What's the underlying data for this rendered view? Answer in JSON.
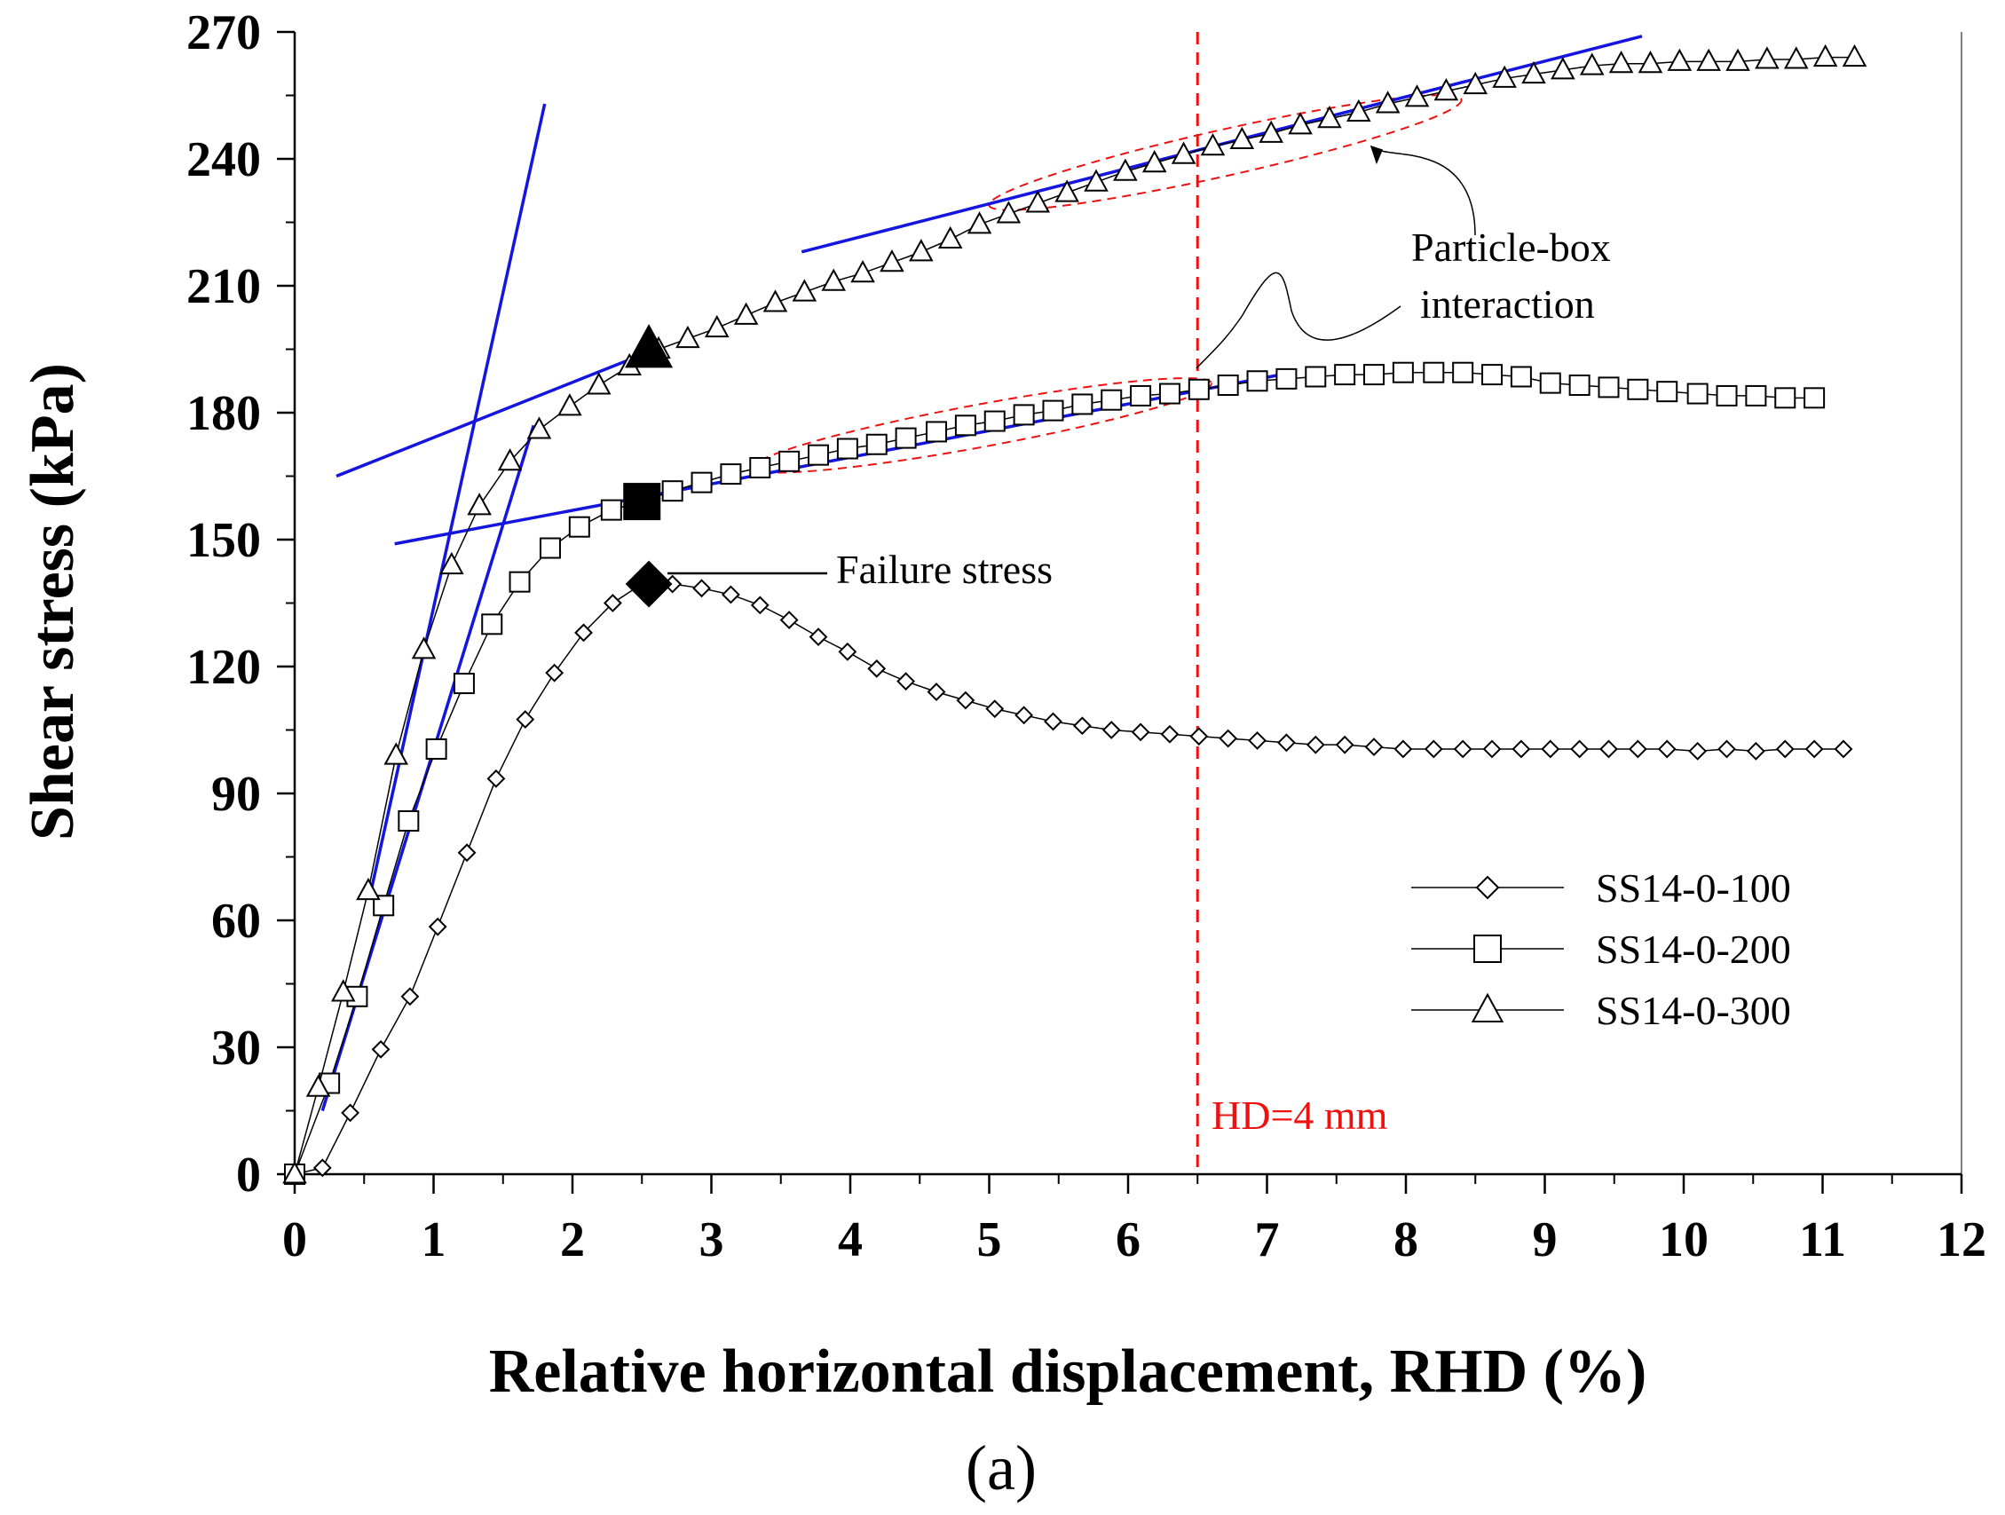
{
  "chart_data": {
    "type": "scatter",
    "xlabel": "Relative horizontal displacement, RHD (%)",
    "ylabel": "Shear stress (kPa)",
    "panel_label": "(a)",
    "xlim": [
      0,
      12
    ],
    "ylim": [
      0,
      270
    ],
    "xticks": [
      0,
      1,
      2,
      3,
      4,
      5,
      6,
      7,
      8,
      9,
      10,
      11,
      12
    ],
    "yticks": [
      0,
      30,
      60,
      90,
      120,
      150,
      180,
      210,
      240,
      270
    ],
    "grid": false,
    "legend_position": "lower-right",
    "series": [
      {
        "name": "SS14-0-100",
        "marker": "diamond",
        "x": [
          0,
          0.2,
          0.4,
          0.62,
          0.83,
          1.03,
          1.24,
          1.45,
          1.66,
          1.87,
          2.08,
          2.29,
          2.5,
          2.72,
          2.93,
          3.14,
          3.35,
          3.56,
          3.77,
          3.98,
          4.19,
          4.4,
          4.62,
          4.83,
          5.04,
          5.25,
          5.46,
          5.67,
          5.88,
          6.09,
          6.3,
          6.51,
          6.72,
          6.93,
          7.14,
          7.35,
          7.56,
          7.77,
          7.98,
          8.2,
          8.41,
          8.62,
          8.83,
          9.04,
          9.25,
          9.46,
          9.67,
          9.88,
          10.1,
          10.31,
          10.52,
          10.73,
          10.94,
          11.15
        ],
        "y": [
          0,
          1.5,
          14.5,
          29.5,
          42,
          58.5,
          76,
          93.5,
          107.5,
          118.5,
          128,
          135,
          139.5,
          139.5,
          138.5,
          137,
          134.5,
          131,
          127,
          123.5,
          119.5,
          116.5,
          114,
          112,
          110,
          108.5,
          107,
          106,
          105,
          104.5,
          104,
          103.5,
          103,
          102.5,
          102,
          101.5,
          101.5,
          101,
          100.5,
          100.5,
          100.5,
          100.5,
          100.5,
          100.5,
          100.5,
          100.5,
          100.5,
          100.5,
          100,
          100.5,
          100,
          100.5,
          100.5,
          100.5
        ]
      },
      {
        "name": "SS14-0-200",
        "marker": "square",
        "x": [
          0,
          0.25,
          0.45,
          0.64,
          0.82,
          1.02,
          1.22,
          1.42,
          1.62,
          1.84,
          2.05,
          2.28,
          2.5,
          2.72,
          2.93,
          3.14,
          3.35,
          3.56,
          3.77,
          3.98,
          4.19,
          4.4,
          4.62,
          4.83,
          5.04,
          5.25,
          5.46,
          5.67,
          5.88,
          6.09,
          6.3,
          6.51,
          6.72,
          6.93,
          7.14,
          7.35,
          7.56,
          7.77,
          7.98,
          8.2,
          8.41,
          8.62,
          8.83,
          9.04,
          9.25,
          9.46,
          9.67,
          9.88,
          10.1,
          10.31,
          10.52,
          10.73,
          10.94
        ],
        "y": [
          0,
          21.5,
          42,
          63.5,
          83.5,
          100.5,
          116,
          130,
          140,
          148,
          153,
          157,
          159,
          161.5,
          163.5,
          165.5,
          167,
          168.5,
          170,
          171.5,
          172.5,
          174,
          175.5,
          177,
          178,
          179.5,
          180.5,
          182,
          183,
          184,
          184.5,
          185.5,
          186.5,
          187.5,
          188,
          188.5,
          189,
          189,
          189.5,
          189.5,
          189.5,
          189,
          188.5,
          187,
          186.5,
          186,
          185.5,
          185,
          184.5,
          184,
          184,
          183.5,
          183.5
        ]
      },
      {
        "name": "SS14-0-300",
        "marker": "triangle",
        "x": [
          0,
          0.17,
          0.35,
          0.53,
          0.73,
          0.93,
          1.13,
          1.33,
          1.55,
          1.76,
          1.98,
          2.19,
          2.41,
          2.62,
          2.83,
          3.04,
          3.25,
          3.46,
          3.67,
          3.88,
          4.09,
          4.3,
          4.51,
          4.72,
          4.93,
          5.14,
          5.35,
          5.56,
          5.77,
          5.98,
          6.19,
          6.4,
          6.61,
          6.82,
          7.03,
          7.24,
          7.45,
          7.66,
          7.87,
          8.08,
          8.29,
          8.5,
          8.71,
          8.92,
          9.13,
          9.34,
          9.55,
          9.76,
          9.97,
          10.18,
          10.39,
          10.6,
          10.81,
          11.02,
          11.23
        ],
        "y": [
          0,
          20.5,
          43,
          67,
          99,
          124,
          144,
          158,
          168.5,
          176,
          181.5,
          186.5,
          191,
          195,
          197.5,
          200,
          203,
          206,
          208.5,
          211,
          213,
          215.5,
          218,
          221,
          224.5,
          227,
          229.5,
          232,
          234.5,
          237,
          239,
          241,
          243,
          244.5,
          246,
          248,
          249.5,
          251,
          253,
          254.5,
          256,
          257.5,
          259,
          260,
          261,
          262,
          262.5,
          262.5,
          263,
          263,
          263,
          263.5,
          263.5,
          264,
          264
        ]
      }
    ],
    "failure_points": [
      {
        "series": "SS14-0-100",
        "x": 2.55,
        "y": 139.5,
        "marker": "diamond"
      },
      {
        "series": "SS14-0-200",
        "x": 2.5,
        "y": 159,
        "marker": "square"
      },
      {
        "series": "SS14-0-300",
        "x": 2.55,
        "y": 195,
        "marker": "triangle"
      }
    ],
    "fit_lines": [
      {
        "x": [
          0.55,
          1.8
        ],
        "y": [
          67,
          253
        ]
      },
      {
        "x": [
          0.2,
          1.72
        ],
        "y": [
          15,
          177
        ]
      },
      {
        "x": [
          0.3,
          2.6
        ],
        "y": [
          165,
          195
        ]
      },
      {
        "x": [
          0.72,
          2.5
        ],
        "y": [
          149,
          160
        ]
      },
      {
        "x": [
          2.5,
          7.1
        ],
        "y": [
          160,
          189
        ]
      },
      {
        "x": [
          3.65,
          9.7
        ],
        "y": [
          218,
          269
        ]
      }
    ],
    "hd_line": {
      "x": 6.5,
      "label": "HD=4 mm"
    },
    "annotations": {
      "failure_stress": "Failure stress",
      "particle_box": [
        "Particle-box",
        "interaction"
      ]
    },
    "colors": {
      "fit_line": "#1515e0",
      "hd_line": "#ee1111",
      "data": "#000000"
    }
  }
}
